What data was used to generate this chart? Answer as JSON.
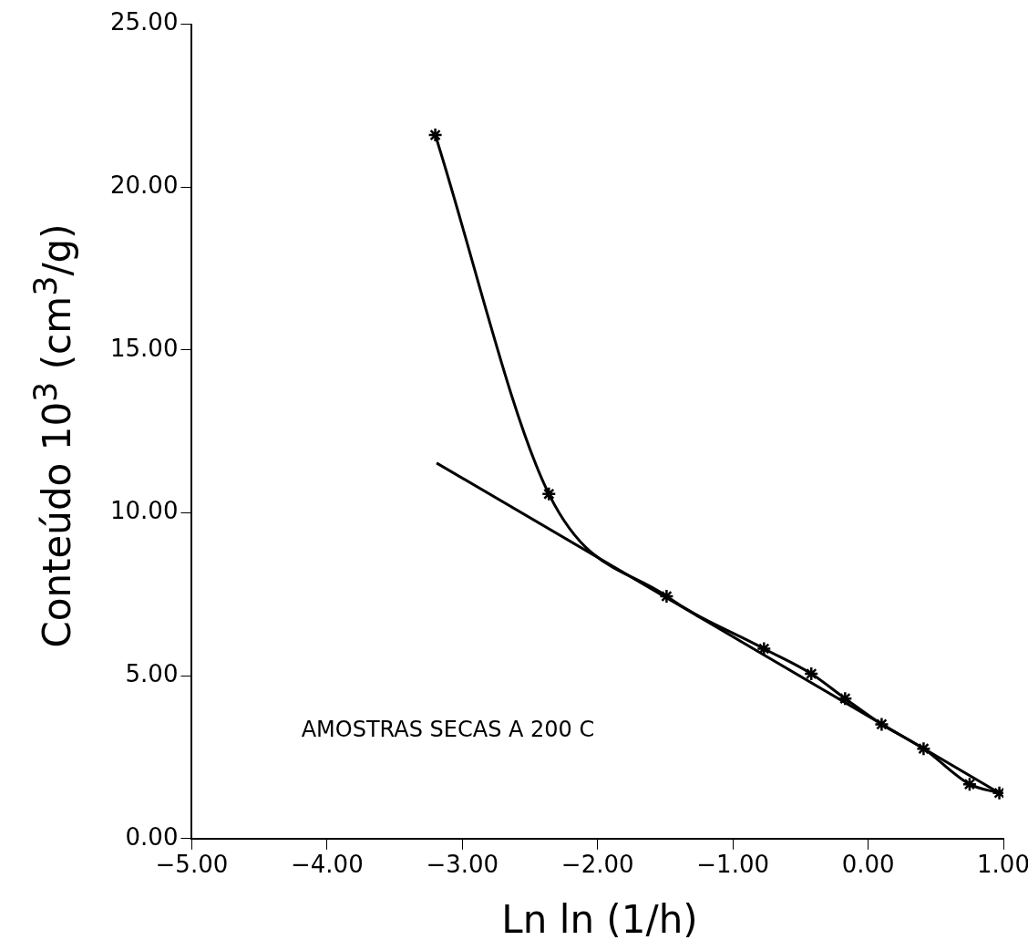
{
  "chart_data": {
    "type": "line",
    "xlabel": "Ln ln (1/h)",
    "ylabel": "Conteúdo 10$^{3}$ (cm$^{3}$/g)",
    "annotations": [
      "AMOSTRAS SECAS A 200 C"
    ],
    "xlim": [
      -5,
      1
    ],
    "ylim": [
      0,
      25
    ],
    "xticks": [
      {
        "value": -5,
        "label": "−5.00"
      },
      {
        "value": -4,
        "label": "−4.00"
      },
      {
        "value": -3,
        "label": "−3.00"
      },
      {
        "value": -2,
        "label": "−2.00"
      },
      {
        "value": -1,
        "label": "−1.00"
      },
      {
        "value": 0,
        "label": "0.00"
      },
      {
        "value": 1,
        "label": "1.00"
      }
    ],
    "yticks": [
      {
        "value": 0,
        "label": "0.00"
      },
      {
        "value": 5,
        "label": "5.00"
      },
      {
        "value": 10,
        "label": "10.00"
      },
      {
        "value": 15,
        "label": "15.00"
      },
      {
        "value": 20,
        "label": "20.00"
      },
      {
        "value": 25,
        "label": "25.00"
      }
    ],
    "grid": false,
    "legend": false,
    "series": [
      {
        "type": "line",
        "color": "#000000",
        "marker": "cross",
        "x": [
          -3.2,
          -2.36,
          -1.49,
          -0.77,
          -0.42,
          -0.17,
          0.1,
          0.41,
          0.75,
          0.97
        ],
        "values": [
          21.6,
          10.58,
          7.44,
          5.83,
          5.06,
          4.3,
          3.51,
          2.76,
          1.67,
          1.4
        ]
      },
      {
        "type": "line",
        "color": "#000000",
        "marker": "none",
        "x": [
          -3.19,
          0.97
        ],
        "values": [
          11.53,
          1.4
        ]
      }
    ]
  }
}
